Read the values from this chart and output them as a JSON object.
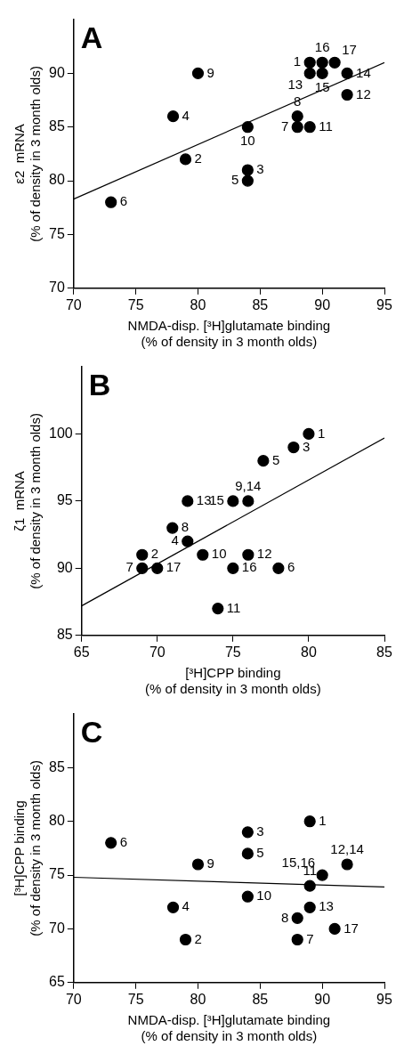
{
  "chart_data": [
    {
      "type": "scatter",
      "title": "A",
      "xlabel": "NMDA-disp. [³H]glutamate binding\n(% of density in 3 month olds)",
      "ylabel": "ε2  mRNA\n(% of density in 3 month olds)",
      "xlim": [
        70,
        95
      ],
      "ylim": [
        70,
        95
      ],
      "xticks": [
        70,
        75,
        80,
        85,
        90,
        95
      ],
      "yticks": [
        70,
        75,
        80,
        85,
        90
      ],
      "grid": false,
      "legend": false,
      "marker": "circle",
      "series": [
        {
          "type": "scatter",
          "color": "#000000",
          "x": [
            89,
            79,
            84,
            78,
            84,
            73,
            88,
            88,
            80,
            84,
            89,
            92,
            89,
            92,
            90,
            90,
            91
          ],
          "values": [
            91,
            82,
            81,
            86,
            80,
            78,
            85,
            86,
            90,
            85,
            85,
            88,
            90,
            90,
            90,
            91,
            91
          ]
        },
        {
          "type": "line",
          "color": "#000000",
          "marker": "none",
          "x": [
            70,
            95
          ],
          "values": [
            78.3,
            91
          ]
        }
      ],
      "annotations": [
        {
          "text": "1",
          "x": 89,
          "y": 91
        },
        {
          "text": "2",
          "x": 79,
          "y": 82
        },
        {
          "text": "3",
          "x": 84,
          "y": 81
        },
        {
          "text": "4",
          "x": 78,
          "y": 86
        },
        {
          "text": "5",
          "x": 84,
          "y": 80
        },
        {
          "text": "6",
          "x": 73,
          "y": 78
        },
        {
          "text": "7",
          "x": 88,
          "y": 85
        },
        {
          "text": "8",
          "x": 88,
          "y": 86
        },
        {
          "text": "9",
          "x": 80,
          "y": 90
        },
        {
          "text": "10",
          "x": 84,
          "y": 85
        },
        {
          "text": "11",
          "x": 89,
          "y": 85
        },
        {
          "text": "12",
          "x": 92,
          "y": 88
        },
        {
          "text": "13",
          "x": 89,
          "y": 90
        },
        {
          "text": "14",
          "x": 92,
          "y": 90
        },
        {
          "text": "15",
          "x": 90,
          "y": 90
        },
        {
          "text": "16",
          "x": 90,
          "y": 91
        },
        {
          "text": "17",
          "x": 91,
          "y": 91
        }
      ]
    },
    {
      "type": "scatter",
      "title": "B",
      "xlabel": "[³H]CPP binding\n(% of density in 3 month olds)",
      "ylabel": "ζ1  mRNA\n(% of density in 3 month olds)",
      "xlim": [
        65,
        85
      ],
      "ylim": [
        85,
        105
      ],
      "xticks": [
        65,
        70,
        75,
        80,
        85
      ],
      "yticks": [
        85,
        90,
        95,
        100
      ],
      "grid": false,
      "legend": false,
      "marker": "circle",
      "series": [
        {
          "type": "scatter",
          "color": "#000000",
          "x": [
            80,
            69,
            79,
            72,
            77,
            78,
            69,
            71,
            76,
            73,
            74,
            76,
            72,
            75,
            75,
            70
          ],
          "values": [
            100,
            91,
            99,
            92,
            98,
            90,
            90,
            93,
            95,
            91,
            87,
            91,
            95,
            95,
            90,
            90
          ]
        },
        {
          "type": "line",
          "color": "#000000",
          "marker": "none",
          "x": [
            65,
            85
          ],
          "values": [
            87.2,
            99.7
          ]
        }
      ],
      "annotations": [
        {
          "text": "1",
          "x": 80,
          "y": 100
        },
        {
          "text": "2",
          "x": 69,
          "y": 91
        },
        {
          "text": "3",
          "x": 79,
          "y": 99
        },
        {
          "text": "4",
          "x": 72,
          "y": 92
        },
        {
          "text": "5",
          "x": 77,
          "y": 98
        },
        {
          "text": "6",
          "x": 78,
          "y": 90
        },
        {
          "text": "7",
          "x": 69,
          "y": 90
        },
        {
          "text": "8",
          "x": 71,
          "y": 93
        },
        {
          "text": "9,14",
          "x": 76,
          "y": 95
        },
        {
          "text": "10",
          "x": 73,
          "y": 91
        },
        {
          "text": "11",
          "x": 74,
          "y": 87
        },
        {
          "text": "12",
          "x": 76,
          "y": 91
        },
        {
          "text": "13",
          "x": 72,
          "y": 95
        },
        {
          "text": "15",
          "x": 75,
          "y": 95
        },
        {
          "text": "16",
          "x": 75,
          "y": 90
        },
        {
          "text": "17",
          "x": 70,
          "y": 90
        }
      ]
    },
    {
      "type": "scatter",
      "title": "C",
      "xlabel": "NMDA-disp. [³H]glutamate binding\n(% of density in 3 month olds)",
      "ylabel": "[³H]CPP binding\n(% of density in 3 month olds)",
      "xlim": [
        70,
        95
      ],
      "ylim": [
        65,
        90
      ],
      "xticks": [
        70,
        75,
        80,
        85,
        90,
        95
      ],
      "yticks": [
        65,
        70,
        75,
        80,
        85
      ],
      "grid": false,
      "legend": false,
      "marker": "circle",
      "series": [
        {
          "type": "scatter",
          "color": "#000000",
          "x": [
            89,
            79,
            84,
            78,
            84,
            73,
            88,
            88,
            80,
            84,
            89,
            92,
            89,
            90,
            91
          ],
          "values": [
            80,
            69,
            79,
            72,
            77,
            78,
            69,
            71,
            76,
            73,
            74,
            76,
            72,
            75,
            70
          ]
        },
        {
          "type": "line",
          "color": "#000000",
          "marker": "none",
          "x": [
            70,
            95
          ],
          "values": [
            74.8,
            73.9
          ]
        }
      ],
      "annotations": [
        {
          "text": "1",
          "x": 89,
          "y": 80
        },
        {
          "text": "2",
          "x": 79,
          "y": 69
        },
        {
          "text": "3",
          "x": 84,
          "y": 79
        },
        {
          "text": "4",
          "x": 78,
          "y": 72
        },
        {
          "text": "5",
          "x": 84,
          "y": 77
        },
        {
          "text": "6",
          "x": 73,
          "y": 78
        },
        {
          "text": "7",
          "x": 88,
          "y": 69
        },
        {
          "text": "8",
          "x": 88,
          "y": 71
        },
        {
          "text": "9",
          "x": 80,
          "y": 76
        },
        {
          "text": "10",
          "x": 84,
          "y": 73
        },
        {
          "text": "11",
          "x": 89,
          "y": 74
        },
        {
          "text": "12,14",
          "x": 92,
          "y": 76
        },
        {
          "text": "13",
          "x": 89,
          "y": 72
        },
        {
          "text": "15,16",
          "x": 90,
          "y": 75
        },
        {
          "text": "17",
          "x": 91,
          "y": 70
        }
      ]
    }
  ]
}
